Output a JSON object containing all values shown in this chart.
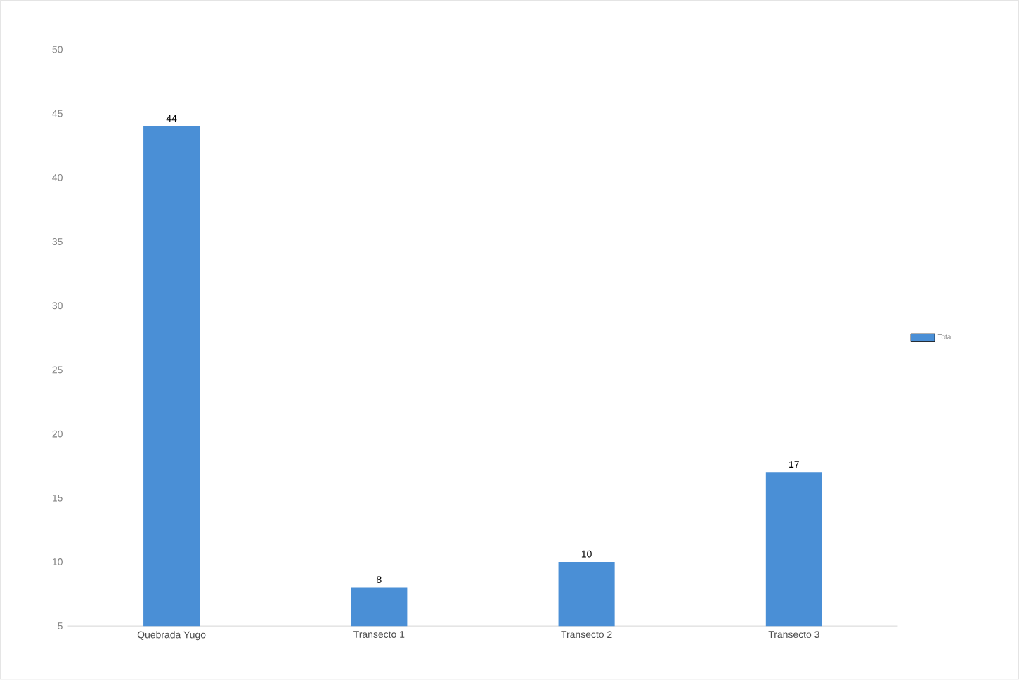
{
  "chart_data": {
    "type": "bar",
    "categories": [
      "Quebrada Yugo",
      "Transecto 1",
      "Transecto 2",
      "Transecto 3"
    ],
    "series": [
      {
        "name": "Total",
        "color": "#4a8fd6",
        "values": [
          44,
          8,
          10,
          17
        ]
      }
    ],
    "ylim": [
      5,
      50
    ],
    "yticks": [
      5,
      10,
      15,
      20,
      25,
      30,
      35,
      40,
      45,
      50
    ],
    "data_labels": true,
    "legend": "right"
  }
}
